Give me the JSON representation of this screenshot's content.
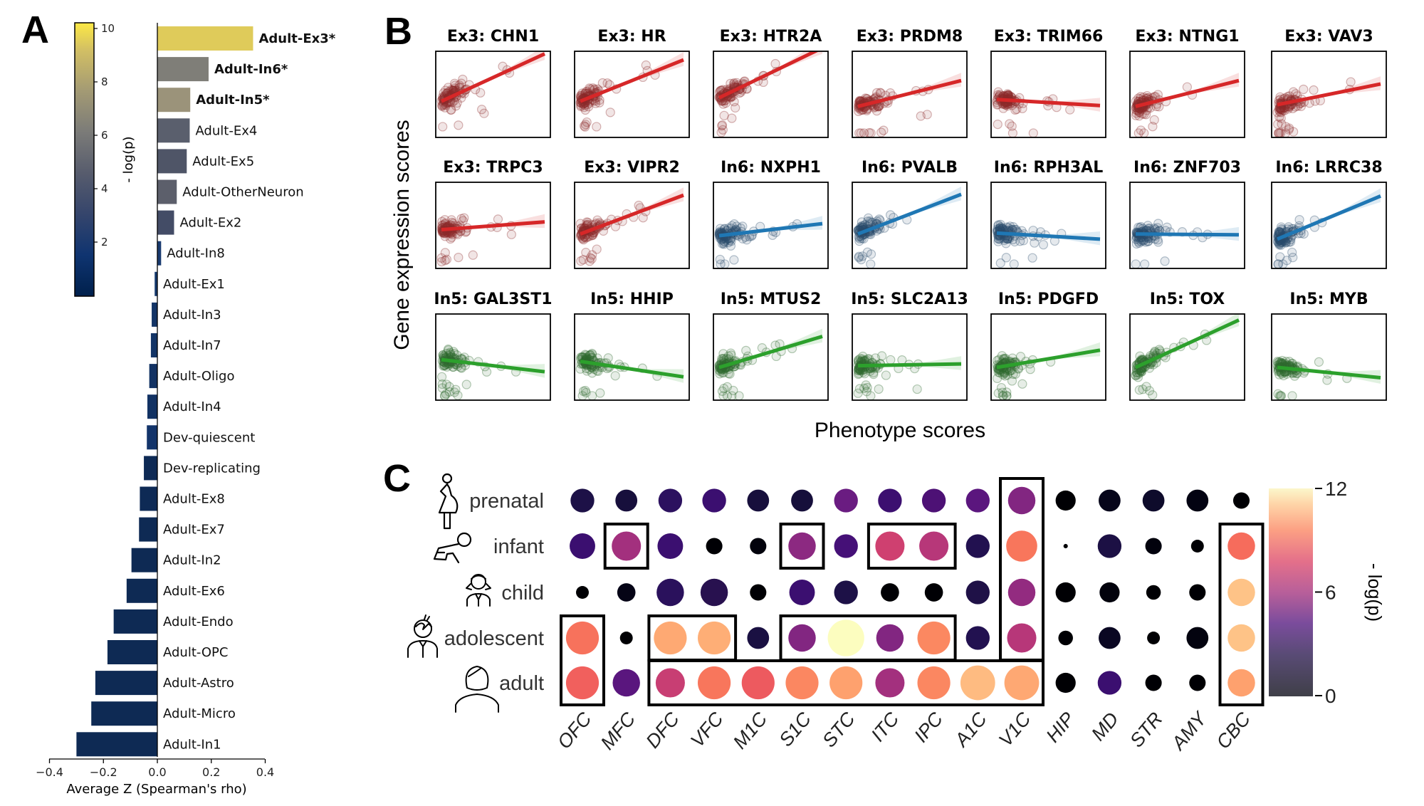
{
  "panel_labels": {
    "a": "A",
    "b": "B",
    "c": "C"
  },
  "chart_data": [
    {
      "id": "panelA",
      "type": "bar",
      "orientation": "horizontal",
      "xlabel": "Average Z (Spearman's rho)",
      "xlim": [
        -0.4,
        0.4
      ],
      "xticks": [
        -0.4,
        -0.2,
        0.0,
        0.2,
        0.4
      ],
      "xtick_labels": [
        "−0.4",
        "−0.2",
        "0.0",
        "0.2",
        "0.4"
      ],
      "colorbar": {
        "label": "- log(p)",
        "range": [
          0,
          10
        ],
        "ticks": [
          2,
          4,
          6,
          8,
          10
        ],
        "colormap": "cividis",
        "colors": [
          "#00204c",
          "#213d6b",
          "#555b6c",
          "#7b7a77",
          "#a59c74",
          "#d3c164",
          "#ffe945"
        ]
      },
      "categories": [
        "Adult-Ex3*",
        "Adult-In6*",
        "Adult-In5*",
        "Adult-Ex4",
        "Adult-Ex5",
        "Adult-OtherNeuron",
        "Adult-Ex2",
        "Adult-In8",
        "Adult-Ex1",
        "Adult-In3",
        "Adult-In7",
        "Adult-Oligo",
        "Adult-In4",
        "Dev-quiescent",
        "Dev-replicating",
        "Adult-Ex8",
        "Adult-Ex7",
        "Adult-In2",
        "Adult-Ex6",
        "Adult-Endo",
        "Adult-OPC",
        "Adult-Astro",
        "Adult-Micro",
        "Adult-In1"
      ],
      "values": [
        0.355,
        0.19,
        0.122,
        0.12,
        0.109,
        0.072,
        0.062,
        0.014,
        -0.01,
        -0.021,
        -0.024,
        -0.03,
        -0.037,
        -0.039,
        -0.05,
        -0.065,
        -0.068,
        -0.096,
        -0.114,
        -0.162,
        -0.185,
        -0.23,
        -0.245,
        -0.3
      ],
      "bold": [
        true,
        true,
        true,
        false,
        false,
        false,
        false,
        false,
        false,
        false,
        false,
        false,
        false,
        false,
        false,
        false,
        false,
        false,
        false,
        false,
        false,
        false,
        false,
        false
      ],
      "neglogp": [
        9.0,
        5.2,
        6.5,
        3.6,
        3.2,
        3.7,
        2.7,
        1.2,
        1.0,
        0.8,
        0.8,
        0.7,
        0.7,
        0.8,
        0.4,
        0.4,
        0.3,
        0.3,
        0.3,
        0.3,
        0.3,
        0.3,
        0.3,
        0.3
      ],
      "bar_colors": [
        "#dfcb5a",
        "#7f7e78",
        "#9b937a",
        "#5a5f6d",
        "#4f5567",
        "#5c5f6b",
        "#434c66",
        "#1a3b70",
        "#163a6e",
        "#133466",
        "#133466",
        "#123263",
        "#123263",
        "#13346a",
        "#0e2a55",
        "#0e2a55",
        "#0e2a54",
        "#0e2a54",
        "#0e2a54",
        "#0e2a54",
        "#0e2a54",
        "#0e2a54",
        "#0e2a54",
        "#0e2a54"
      ]
    },
    {
      "id": "panelB",
      "type": "scatter",
      "ylabel": "Gene expression scores",
      "xlabel": "Phenotype scores",
      "panels": [
        {
          "title": "Ex3: CHN1",
          "group": "Ex3",
          "slope": 0.55,
          "intercept": 0.42
        },
        {
          "title": "Ex3: HR",
          "group": "Ex3",
          "slope": 0.48,
          "intercept": 0.42
        },
        {
          "title": "Ex3: HTR2A",
          "group": "Ex3",
          "slope": 0.58,
          "intercept": 0.46
        },
        {
          "title": "Ex3: PRDM8",
          "group": "Ex3",
          "slope": 0.3,
          "intercept": 0.36
        },
        {
          "title": "Ex3: TRIM66",
          "group": "Ex3",
          "slope": -0.07,
          "intercept": 0.44
        },
        {
          "title": "Ex3: NTNG1",
          "group": "Ex3",
          "slope": 0.3,
          "intercept": 0.36
        },
        {
          "title": "Ex3: VAV3",
          "group": "Ex3",
          "slope": 0.24,
          "intercept": 0.38
        },
        {
          "title": "Ex3: TRPC3",
          "group": "Ex3",
          "slope": 0.09,
          "intercept": 0.45
        },
        {
          "title": "Ex3: VIPR2",
          "group": "Ex3",
          "slope": 0.45,
          "intercept": 0.4
        },
        {
          "title": "In6: NXPH1",
          "group": "In6",
          "slope": 0.14,
          "intercept": 0.38
        },
        {
          "title": "In6: PVALB",
          "group": "In6",
          "slope": 0.46,
          "intercept": 0.4
        },
        {
          "title": "In6: RPH3AL",
          "group": "In6",
          "slope": -0.07,
          "intercept": 0.41
        },
        {
          "title": "In6: ZNF703",
          "group": "In6",
          "slope": -0.01,
          "intercept": 0.4
        },
        {
          "title": "In6: LRRC38",
          "group": "In6",
          "slope": 0.5,
          "intercept": 0.34
        },
        {
          "title": "In5: GAL3ST1",
          "group": "In5",
          "slope": -0.14,
          "intercept": 0.47
        },
        {
          "title": "In5: HHIP",
          "group": "In5",
          "slope": -0.18,
          "intercept": 0.45
        },
        {
          "title": "In5: MTUS2",
          "group": "In5",
          "slope": 0.36,
          "intercept": 0.38
        },
        {
          "title": "In5: SLC2A13",
          "group": "In5",
          "slope": 0.02,
          "intercept": 0.4
        },
        {
          "title": "In5: PDGFD",
          "group": "In5",
          "slope": 0.2,
          "intercept": 0.38
        },
        {
          "title": "In5: TOX",
          "group": "In5",
          "slope": 0.55,
          "intercept": 0.38
        },
        {
          "title": "In5: MYB",
          "group": "In5",
          "slope": -0.12,
          "intercept": 0.38
        }
      ],
      "group_colors": {
        "Ex3": "#d62728",
        "In6": "#1f77b4",
        "In5": "#2ca02c"
      },
      "point_colors": {
        "Ex3": "#8b2a2a",
        "In6": "#2a4e6e",
        "In5": "#2e6b2e"
      }
    },
    {
      "id": "panelC",
      "type": "heatmap",
      "subtype": "dot-matrix",
      "rows": [
        "prenatal",
        "infant",
        "child",
        "adolescent",
        "adult"
      ],
      "row_icons": [
        "pregnant-woman-icon",
        "crawling-baby-icon",
        "child-girl-icon",
        "adolescent-boy-icon",
        "adult-woman-icon"
      ],
      "columns": [
        "OFC",
        "MFC",
        "DFC",
        "VFC",
        "M1C",
        "S1C",
        "STC",
        "ITC",
        "IPC",
        "A1C",
        "V1C",
        "HIP",
        "MD",
        "STR",
        "AMY",
        "CBC"
      ],
      "colorbar": {
        "label": "- log(p)",
        "range": [
          0,
          12
        ],
        "ticks": [
          0,
          6,
          12
        ],
        "colormap": "magma"
      },
      "values": [
        [
          1.2,
          1.0,
          2.2,
          2.6,
          1.0,
          1.0,
          4.0,
          2.6,
          2.8,
          3.2,
          4.2,
          0.2,
          0.3,
          0.6,
          0.2,
          0.1
        ],
        [
          2.4,
          5.4,
          2.4,
          0.1,
          0.1,
          4.4,
          2.6,
          6.8,
          6.0,
          1.4,
          8.8,
          0.05,
          1.4,
          0.2,
          0.1,
          8.6
        ],
        [
          0.1,
          0.1,
          1.6,
          1.6,
          0.1,
          2.2,
          1.2,
          0.1,
          0.1,
          1.4,
          4.6,
          0.2,
          0.2,
          0.1,
          0.1,
          10.6
        ],
        [
          9.0,
          0.1,
          10.4,
          10.6,
          1.2,
          4.2,
          12.0,
          4.2,
          9.2,
          1.4,
          6.2,
          0.1,
          0.4,
          0.1,
          0.3,
          10.6
        ],
        [
          8.4,
          3.2,
          6.4,
          9.0,
          8.2,
          9.4,
          10.2,
          5.2,
          9.4,
          11.2,
          10.6,
          0.2,
          2.4,
          0.1,
          0.1,
          9.8
        ]
      ],
      "sizes": [
        [
          0.65,
          0.6,
          0.65,
          0.65,
          0.6,
          0.6,
          0.65,
          0.65,
          0.65,
          0.65,
          0.75,
          0.55,
          0.6,
          0.6,
          0.6,
          0.45
        ],
        [
          0.7,
          0.8,
          0.7,
          0.45,
          0.45,
          0.75,
          0.65,
          0.8,
          0.8,
          0.65,
          0.85,
          0.12,
          0.65,
          0.45,
          0.35,
          0.75
        ],
        [
          0.35,
          0.5,
          0.75,
          0.75,
          0.45,
          0.7,
          0.65,
          0.5,
          0.5,
          0.65,
          0.75,
          0.55,
          0.55,
          0.4,
          0.45,
          0.75
        ],
        [
          0.9,
          0.35,
          0.9,
          0.9,
          0.6,
          0.75,
          1.0,
          0.75,
          0.9,
          0.65,
          0.8,
          0.4,
          0.6,
          0.35,
          0.6,
          0.75
        ],
        [
          0.9,
          0.75,
          0.8,
          0.9,
          0.9,
          0.9,
          0.9,
          0.8,
          0.9,
          0.95,
          0.95,
          0.55,
          0.65,
          0.45,
          0.45,
          0.75
        ]
      ],
      "colors": [
        [
          "#1d1147",
          "#170f3c",
          "#2c115f",
          "#3b0f70",
          "#170f3c",
          "#160f3b",
          "#6a1c81",
          "#3c0f70",
          "#4d1175",
          "#5b167e",
          "#822681",
          "#000004",
          "#06051a",
          "#0e0b2b",
          "#030312",
          "#000004"
        ],
        [
          "#3b0f70",
          "#a3307e",
          "#3b0f70",
          "#000004",
          "#02020c",
          "#8c2981",
          "#451077",
          "#cf4070",
          "#b73779",
          "#221150",
          "#f8765c",
          "#000004",
          "#1c1044",
          "#02020d",
          "#000004",
          "#f66c5c"
        ],
        [
          "#000004",
          "#050416",
          "#2a115c",
          "#28114f",
          "#000004",
          "#3b0f70",
          "#1d1147",
          "#000004",
          "#000004",
          "#1f1147",
          "#932b80",
          "#000004",
          "#02020c",
          "#000004",
          "#000004",
          "#fec387"
        ],
        [
          "#f7725c",
          "#000004",
          "#fea973",
          "#feae76",
          "#1a1042",
          "#822681",
          "#fcfdbf",
          "#822681",
          "#fb8861",
          "#221150",
          "#b73779",
          "#000004",
          "#0a0722",
          "#000004",
          "#03030f",
          "#fec387"
        ],
        [
          "#f1605d",
          "#5a167e",
          "#c83e73",
          "#f8765c",
          "#ed5a5f",
          "#fb8761",
          "#fea16e",
          "#a3307e",
          "#fb8761",
          "#febb81",
          "#fea873",
          "#000004",
          "#3b0f70",
          "#000004",
          "#000004",
          "#fea16e"
        ]
      ],
      "highlight_boxes": [
        {
          "rows": [
            "adolescent",
            "adult"
          ],
          "columns": [
            "OFC"
          ]
        },
        {
          "rows": [
            "infant"
          ],
          "columns": [
            "MFC"
          ]
        },
        {
          "rows": [
            "adolescent"
          ],
          "columns": [
            "DFC",
            "VFC"
          ]
        },
        {
          "rows": [
            "adult"
          ],
          "columns": [
            "DFC",
            "V1C"
          ]
        },
        {
          "rows": [
            "infant"
          ],
          "columns": [
            "S1C"
          ]
        },
        {
          "rows": [
            "infant"
          ],
          "columns": [
            "ITC",
            "IPC"
          ]
        },
        {
          "rows": [
            "adolescent"
          ],
          "columns": [
            "S1C",
            "IPC"
          ]
        },
        {
          "rows": [
            "prenatal",
            "adolescent"
          ],
          "columns": [
            "V1C"
          ]
        },
        {
          "rows": [
            "infant",
            "adult"
          ],
          "columns": [
            "CBC"
          ]
        }
      ]
    }
  ]
}
